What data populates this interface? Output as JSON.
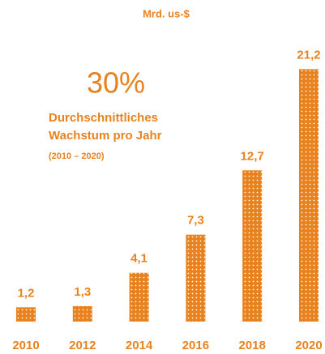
{
  "chart_data": {
    "type": "bar",
    "title": "Mrd. us-$",
    "annotation": {
      "headline": "30%",
      "lines": [
        "Durchschnittliches",
        "Wachstum pro Jahr"
      ],
      "note": "(2010 – 2020)"
    },
    "categories": [
      "2010",
      "2012",
      "2014",
      "2016",
      "2018",
      "2020"
    ],
    "values": [
      1.2,
      1.3,
      4.1,
      7.3,
      12.7,
      21.2
    ],
    "value_labels": [
      "1,2",
      "1,3",
      "4,1",
      "7,3",
      "12,7",
      "21,2"
    ],
    "color": "#e8821e"
  }
}
